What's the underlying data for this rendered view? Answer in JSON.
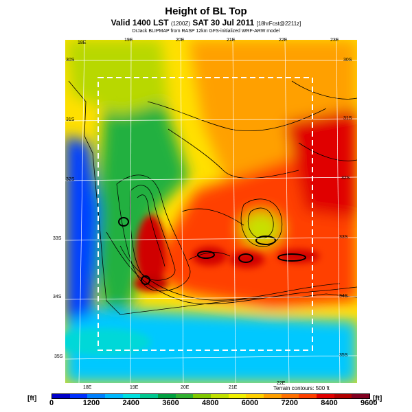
{
  "title": "Height of BL Top",
  "subtitle_main": "Valid 1400 LST",
  "subtitle_small": "(1200Z)",
  "subtitle_date": "SAT 30 Jul 2011",
  "subtitle_fcst": "[18hrFcst@2211z]",
  "credit": "DrJack BLIPMAP from RASP 12km GFS-initialized WRF-ARW model",
  "terrain_note": "Terrain contours: 500 ft",
  "unit": "[ft]",
  "lon_labels_top": [
    "18E",
    "19E",
    "20E",
    "21E",
    "22E",
    "23E"
  ],
  "lon_labels_bottom": [
    "18E",
    "19E",
    "20E",
    "21E",
    "22E"
  ],
  "lat_labels_left": [
    "30S",
    "31S",
    "32S",
    "33S",
    "34S",
    "35S"
  ],
  "lat_labels_right": [
    "30S",
    "31S",
    "32S",
    "33S",
    "34S",
    "35S"
  ],
  "colorbar": {
    "labels": [
      "0",
      "1200",
      "2400",
      "3600",
      "4800",
      "6000",
      "7200",
      "8400",
      "9600"
    ],
    "colors": [
      "#0000c8",
      "#0030ff",
      "#0080ff",
      "#00b8ff",
      "#00e0e0",
      "#00c890",
      "#00a040",
      "#30b030",
      "#80c800",
      "#c0e000",
      "#f0f000",
      "#ffd000",
      "#ffa000",
      "#ff7000",
      "#ff4000",
      "#e00000",
      "#b00000",
      "#800020"
    ]
  },
  "map_regions": {
    "ocean_west": "#0040ff",
    "ocean_south": "#00c0ff",
    "coast_green": "#20b040",
    "north_yellow": "#ffe000",
    "north_east_orange": "#ffa000",
    "interior_red": "#ff4000",
    "hotspot_dark": "#d00000"
  }
}
